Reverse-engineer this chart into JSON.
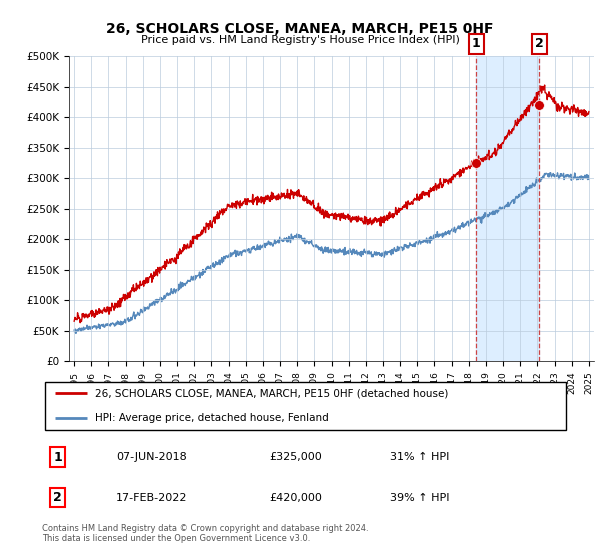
{
  "title": "26, SCHOLARS CLOSE, MANEA, MARCH, PE15 0HF",
  "subtitle": "Price paid vs. HM Land Registry's House Price Index (HPI)",
  "ylim": [
    0,
    500000
  ],
  "ytick_labels": [
    "£0",
    "£50K",
    "£100K",
    "£150K",
    "£200K",
    "£250K",
    "£300K",
    "£350K",
    "£400K",
    "£450K",
    "£500K"
  ],
  "xlim_start": 1994.7,
  "xlim_end": 2025.3,
  "marker1_x": 2018.44,
  "marker1_y": 325000,
  "marker2_x": 2022.12,
  "marker2_y": 420000,
  "legend_line1": "26, SCHOLARS CLOSE, MANEA, MARCH, PE15 0HF (detached house)",
  "legend_line2": "HPI: Average price, detached house, Fenland",
  "table_row1_num": "1",
  "table_row1_date": "07-JUN-2018",
  "table_row1_price": "£325,000",
  "table_row1_hpi": "31% ↑ HPI",
  "table_row2_num": "2",
  "table_row2_date": "17-FEB-2022",
  "table_row2_price": "£420,000",
  "table_row2_hpi": "39% ↑ HPI",
  "footnote": "Contains HM Land Registry data © Crown copyright and database right 2024.\nThis data is licensed under the Open Government Licence v3.0.",
  "red_color": "#cc0000",
  "blue_color": "#5588bb",
  "shade_color": "#ddeeff",
  "grid_color": "#bbccdd",
  "vline_color": "#cc4444"
}
